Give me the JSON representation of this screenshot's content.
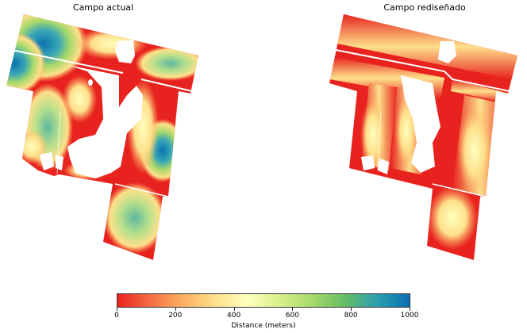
{
  "panels": [
    {
      "title": "Campo actual"
    },
    {
      "title": "Campo rediseñado"
    }
  ],
  "colorbar": {
    "label": "Distance (meters)",
    "ticks": [
      "0",
      "200",
      "400",
      "600",
      "800",
      "1000"
    ],
    "min": 0,
    "max": 1000,
    "colormap": [
      "#e8231f",
      "#f46d43",
      "#fdae61",
      "#fee08b",
      "#ffffbf",
      "#d9ef8b",
      "#a6d96a",
      "#66bd63",
      "#2b9fb0",
      "#0a6fb0"
    ]
  }
}
